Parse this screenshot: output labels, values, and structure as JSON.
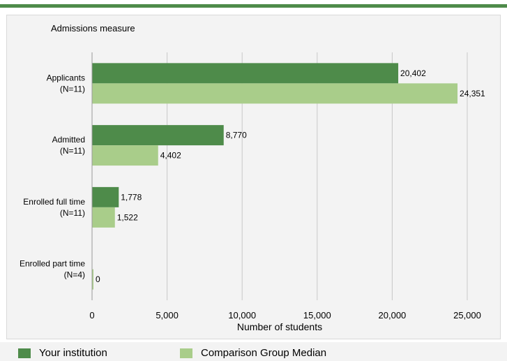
{
  "chart_data": {
    "type": "bar",
    "orientation": "horizontal",
    "title": "Admissions measure",
    "xlabel": "Number of students",
    "xlim": [
      0,
      25000
    ],
    "xticks": [
      0,
      5000,
      10000,
      15000,
      20000,
      25000
    ],
    "xtick_labels": [
      "0",
      "5,000",
      "10,000",
      "15,000",
      "20,000",
      "25,000"
    ],
    "grid": true,
    "legend_position": "bottom",
    "categories": [
      {
        "name": "Applicants",
        "n": "(N=11)"
      },
      {
        "name": "Admitted",
        "n": "(N=11)"
      },
      {
        "name": "Enrolled full time",
        "n": "(N=11)"
      },
      {
        "name": "Enrolled part time",
        "n": "(N=4)"
      }
    ],
    "series": [
      {
        "name": "Your institution",
        "color": "#4e8b4a",
        "values": [
          20402,
          8770,
          1778,
          null
        ],
        "labels": [
          "20,402",
          "8,770",
          "1,778",
          ""
        ]
      },
      {
        "name": "Comparison Group Median",
        "color": "#a9cd8a",
        "values": [
          24351,
          4402,
          1522,
          0
        ],
        "labels": [
          "24,351",
          "4,402",
          "1,522",
          "0"
        ]
      }
    ]
  }
}
